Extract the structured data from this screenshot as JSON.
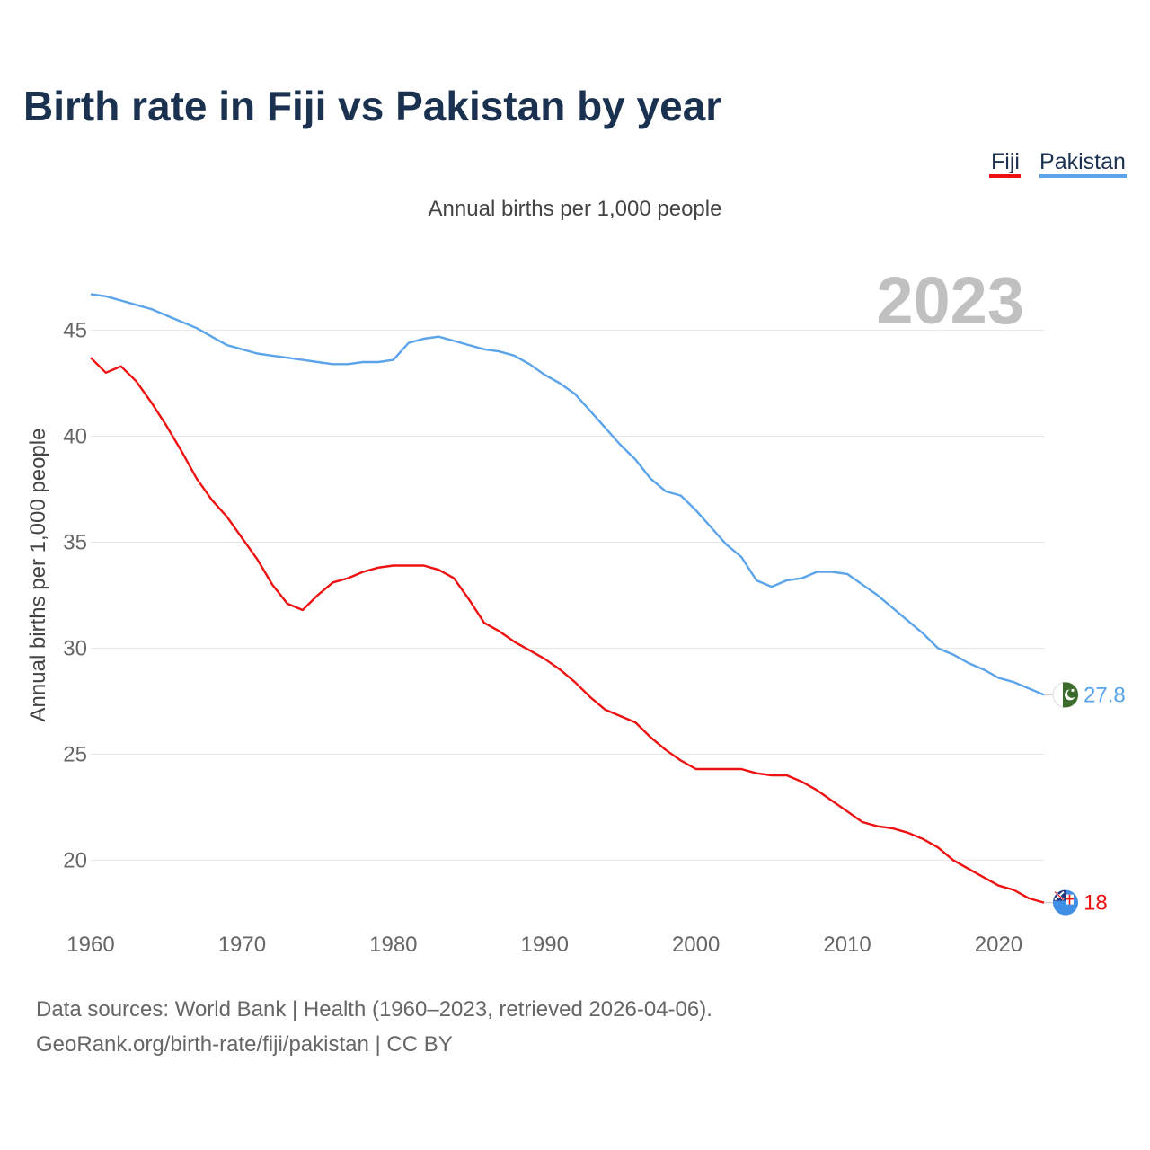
{
  "title": "Birth rate in Fiji vs Pakistan by year",
  "subtitle": "Annual births per 1,000 people",
  "year_watermark": "2023",
  "legend": [
    {
      "label": "Fiji",
      "color": "#ee1111"
    },
    {
      "label": "Pakistan",
      "color": "#5ba4ea"
    }
  ],
  "end_labels": {
    "fiji": "18",
    "pakistan": "27.8"
  },
  "source_line1": "Data sources: World Bank | Health (1960–2023, retrieved 2026-04-06).",
  "source_line2": "GeoRank.org/birth-rate/fiji/pakistan | CC BY",
  "flag_icons": {
    "fiji": "fiji-flag-icon",
    "pakistan": "pakistan-flag-icon"
  },
  "chart_data": {
    "type": "line",
    "title": "Birth rate in Fiji vs Pakistan by year",
    "xlabel": "",
    "ylabel": "Annual births per 1,000 people",
    "xlim": [
      1960,
      2023
    ],
    "ylim": [
      16.5,
      48.5
    ],
    "xticks": [
      1960,
      1970,
      1980,
      1990,
      2000,
      2010,
      2020
    ],
    "yticks": [
      20,
      25,
      30,
      35,
      40,
      45
    ],
    "x": [
      1960,
      1961,
      1962,
      1963,
      1964,
      1965,
      1966,
      1967,
      1968,
      1969,
      1970,
      1971,
      1972,
      1973,
      1974,
      1975,
      1976,
      1977,
      1978,
      1979,
      1980,
      1981,
      1982,
      1983,
      1984,
      1985,
      1986,
      1987,
      1988,
      1989,
      1990,
      1991,
      1992,
      1993,
      1994,
      1995,
      1996,
      1997,
      1998,
      1999,
      2000,
      2001,
      2002,
      2003,
      2004,
      2005,
      2006,
      2007,
      2008,
      2009,
      2010,
      2011,
      2012,
      2013,
      2014,
      2015,
      2016,
      2017,
      2018,
      2019,
      2020,
      2021,
      2022,
      2023
    ],
    "series": [
      {
        "name": "Fiji",
        "color": "#ee1111",
        "values": [
          43.7,
          43.0,
          43.3,
          42.6,
          41.6,
          40.5,
          39.3,
          38.0,
          37.0,
          36.2,
          35.2,
          34.2,
          33.0,
          32.1,
          31.8,
          32.5,
          33.1,
          33.3,
          33.6,
          33.8,
          33.9,
          33.9,
          33.9,
          33.7,
          33.3,
          32.3,
          31.2,
          30.8,
          30.3,
          29.9,
          29.5,
          29.0,
          28.4,
          27.7,
          27.1,
          26.8,
          26.5,
          25.8,
          25.2,
          24.7,
          24.3,
          24.3,
          24.3,
          24.3,
          24.1,
          24.0,
          24.0,
          23.7,
          23.3,
          22.8,
          22.3,
          21.8,
          21.6,
          21.5,
          21.3,
          21.0,
          20.6,
          20.0,
          19.6,
          19.2,
          18.8,
          18.6,
          18.2,
          18.0
        ]
      },
      {
        "name": "Pakistan",
        "color": "#5ba4ea",
        "values": [
          46.7,
          46.6,
          46.4,
          46.2,
          46.0,
          45.7,
          45.4,
          45.1,
          44.7,
          44.3,
          44.1,
          43.9,
          43.8,
          43.7,
          43.6,
          43.5,
          43.4,
          43.4,
          43.5,
          43.5,
          43.6,
          44.4,
          44.6,
          44.7,
          44.5,
          44.3,
          44.1,
          44.0,
          43.8,
          43.4,
          42.9,
          42.5,
          42.0,
          41.2,
          40.4,
          39.6,
          38.9,
          38.0,
          37.4,
          37.2,
          36.5,
          35.7,
          34.9,
          34.3,
          33.2,
          32.9,
          33.2,
          33.3,
          33.6,
          33.6,
          33.5,
          33.0,
          32.5,
          31.9,
          31.3,
          30.7,
          30.0,
          29.7,
          29.3,
          29.0,
          28.6,
          28.4,
          28.1,
          27.8
        ]
      }
    ]
  }
}
